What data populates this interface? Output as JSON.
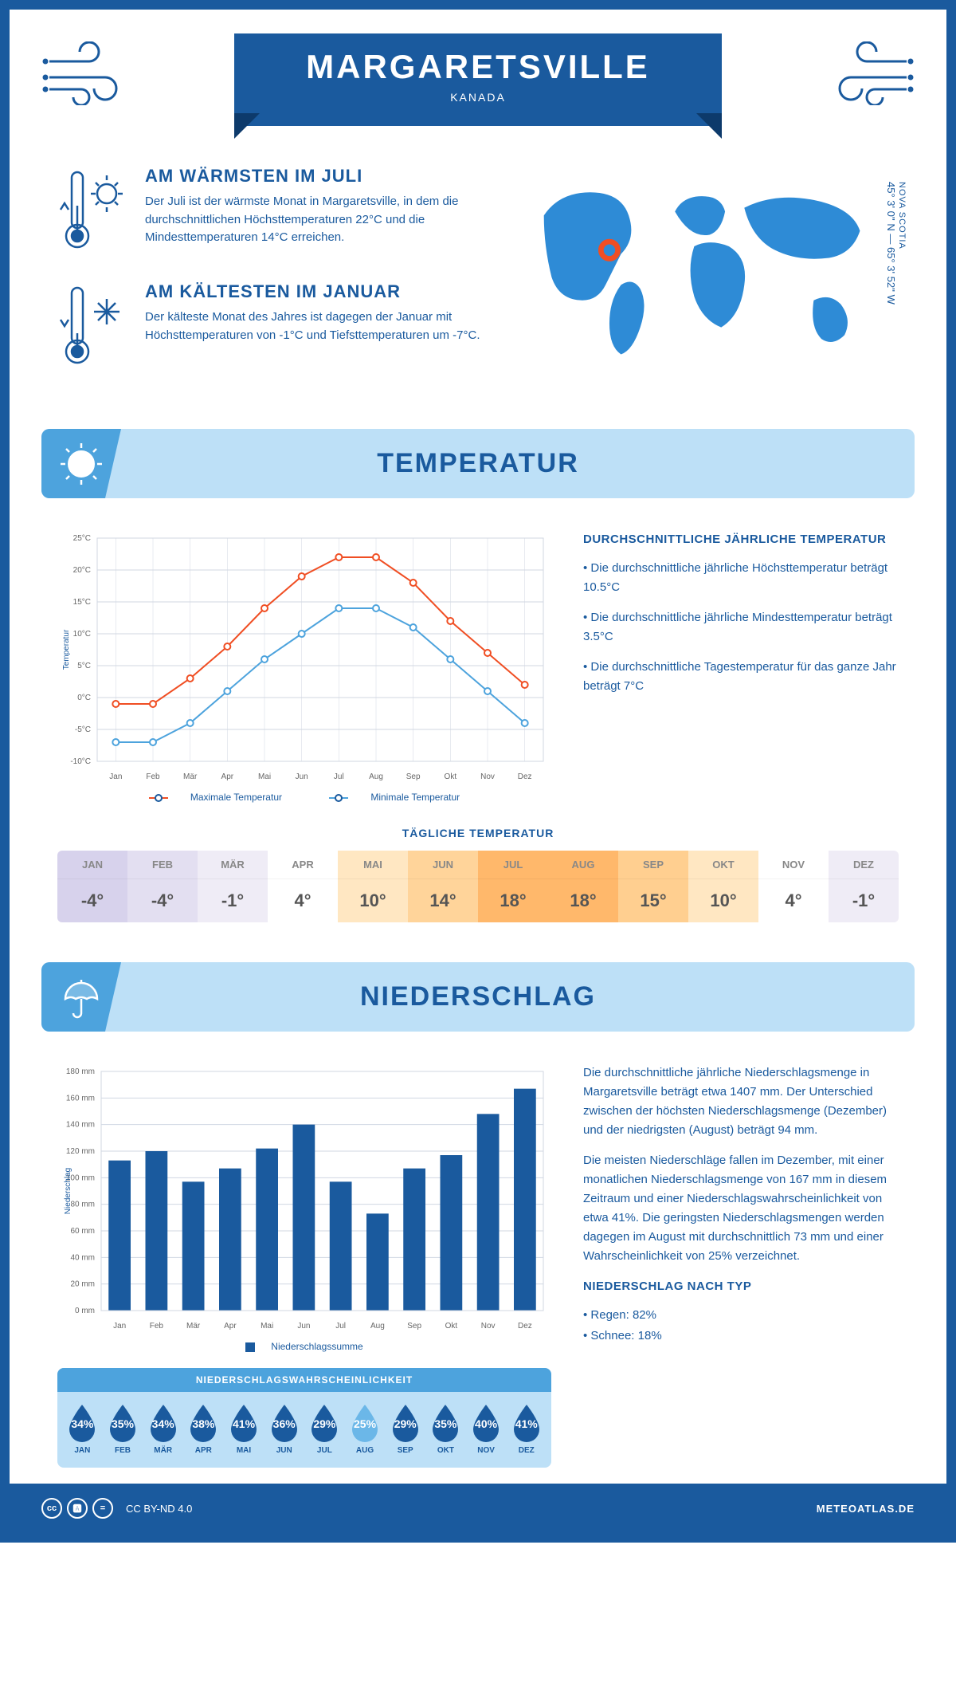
{
  "header": {
    "city": "MARGARETSVILLE",
    "country": "KANADA"
  },
  "location": {
    "region": "NOVA SCOTIA",
    "coords": "45° 3' 0'' N — 65° 3' 52'' W",
    "marker_color": "#f04e23",
    "map_color": "#2e8bd6"
  },
  "facts": {
    "warm": {
      "title": "AM WÄRMSTEN IM JULI",
      "text": "Der Juli ist der wärmste Monat in Margaretsville, in dem die durchschnittlichen Höchsttemperaturen 22°C und die Mindesttemperaturen 14°C erreichen."
    },
    "cold": {
      "title": "AM KÄLTESTEN IM JANUAR",
      "text": "Der kälteste Monat des Jahres ist dagegen der Januar mit Höchsttemperaturen von -1°C und Tiefsttemperaturen um -7°C."
    }
  },
  "temperature_section": {
    "banner": "TEMPERATUR",
    "chart": {
      "months": [
        "Jan",
        "Feb",
        "Mär",
        "Apr",
        "Mai",
        "Jun",
        "Jul",
        "Aug",
        "Sep",
        "Okt",
        "Nov",
        "Dez"
      ],
      "max_series": [
        -1,
        -1,
        3,
        8,
        14,
        19,
        22,
        22,
        18,
        12,
        7,
        2
      ],
      "min_series": [
        -7,
        -7,
        -4,
        1,
        6,
        10,
        14,
        14,
        11,
        6,
        1,
        -4
      ],
      "max_color": "#f04e23",
      "min_color": "#4da3dd",
      "grid_color": "#d0d7e2",
      "y_min": -10,
      "y_max": 25,
      "y_step": 5,
      "y_title": "Temperatur",
      "legend_max": "Maximale Temperatur",
      "legend_min": "Minimale Temperatur"
    },
    "summary": {
      "title": "DURCHSCHNITTLICHE JÄHRLICHE TEMPERATUR",
      "b1": "• Die durchschnittliche jährliche Höchsttemperatur beträgt 10.5°C",
      "b2": "• Die durchschnittliche jährliche Mindesttemperatur beträgt 3.5°C",
      "b3": "• Die durchschnittliche Tagestemperatur für das ganze Jahr beträgt 7°C"
    },
    "daily": {
      "title": "TÄGLICHE TEMPERATUR",
      "months": [
        "JAN",
        "FEB",
        "MÄR",
        "APR",
        "MAI",
        "JUN",
        "JUL",
        "AUG",
        "SEP",
        "OKT",
        "NOV",
        "DEZ"
      ],
      "values": [
        "-4°",
        "-4°",
        "-1°",
        "4°",
        "10°",
        "14°",
        "18°",
        "18°",
        "15°",
        "10°",
        "4°",
        "-1°"
      ],
      "colors": [
        "#d7d2ec",
        "#e3dff1",
        "#efecf6",
        "#ffffff",
        "#ffe7c2",
        "#ffd49a",
        "#ffb86b",
        "#ffb86b",
        "#ffcf90",
        "#ffe7c2",
        "#ffffff",
        "#efecf6"
      ]
    }
  },
  "precip_section": {
    "banner": "NIEDERSCHLAG",
    "chart": {
      "months": [
        "Jan",
        "Feb",
        "Mär",
        "Apr",
        "Mai",
        "Jun",
        "Jul",
        "Aug",
        "Sep",
        "Okt",
        "Nov",
        "Dez"
      ],
      "values": [
        113,
        120,
        97,
        107,
        122,
        140,
        97,
        73,
        107,
        117,
        148,
        167
      ],
      "bar_color": "#1a5a9e",
      "grid_color": "#d0d7e2",
      "y_min": 0,
      "y_max": 180,
      "y_step": 20,
      "y_title": "Niederschlag",
      "legend": "Niederschlagssumme"
    },
    "text": {
      "p1": "Die durchschnittliche jährliche Niederschlagsmenge in Margaretsville beträgt etwa 1407 mm. Der Unterschied zwischen der höchsten Niederschlagsmenge (Dezember) und der niedrigsten (August) beträgt 94 mm.",
      "p2": "Die meisten Niederschläge fallen im Dezember, mit einer monatlichen Niederschlagsmenge von 167 mm in diesem Zeitraum und einer Niederschlagswahrscheinlichkeit von etwa 41%. Die geringsten Niederschlagsmengen werden dagegen im August mit durchschnittlich 73 mm und einer Wahrscheinlichkeit von 25% verzeichnet.",
      "type_title": "NIEDERSCHLAG NACH TYP",
      "type1": "• Regen: 82%",
      "type2": "• Schnee: 18%"
    },
    "probability": {
      "title": "NIEDERSCHLAGSWAHRSCHEINLICHKEIT",
      "months": [
        "JAN",
        "FEB",
        "MÄR",
        "APR",
        "MAI",
        "JUN",
        "JUL",
        "AUG",
        "SEP",
        "OKT",
        "NOV",
        "DEZ"
      ],
      "values": [
        "34%",
        "35%",
        "34%",
        "38%",
        "41%",
        "36%",
        "29%",
        "25%",
        "29%",
        "35%",
        "40%",
        "41%"
      ],
      "drop_color": "#1a5a9e",
      "drop_min_color": "#6bb7e8",
      "min_index": 7
    }
  },
  "footer": {
    "license": "CC BY-ND 4.0",
    "site": "METEOATLAS.DE"
  },
  "colors": {
    "primary": "#1a5a9e",
    "light": "#bde0f7",
    "mid": "#4da3dd"
  }
}
